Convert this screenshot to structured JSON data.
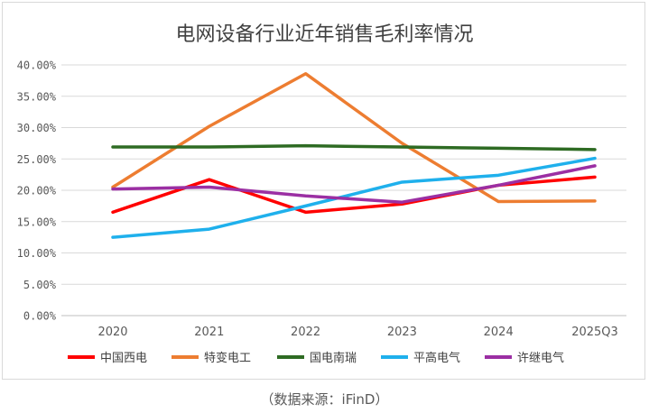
{
  "chart_data": {
    "type": "line",
    "title": "电网设备行业近年销售毛利率情况",
    "categories": [
      "2020",
      "2021",
      "2022",
      "2023",
      "2024",
      "2025Q3"
    ],
    "y_tick_labels": [
      "0.00%",
      "5.00%",
      "10.00%",
      "15.00%",
      "20.00%",
      "25.00%",
      "30.00%",
      "35.00%",
      "40.00%"
    ],
    "ylim": [
      0,
      40
    ],
    "y_unit": "%",
    "grid": true,
    "legend_position": "bottom",
    "series": [
      {
        "name": "中国西电",
        "color": "#ff0000",
        "values": [
          16.5,
          21.7,
          16.5,
          17.8,
          20.8,
          22.1
        ]
      },
      {
        "name": "特变电工",
        "color": "#ed7d31",
        "values": [
          20.5,
          30.2,
          38.6,
          27.5,
          18.2,
          18.3
        ]
      },
      {
        "name": "国电南瑞",
        "color": "#2e6b23",
        "values": [
          26.9,
          26.9,
          27.1,
          26.9,
          26.7,
          26.5
        ]
      },
      {
        "name": "平高电气",
        "color": "#1fb0ec",
        "values": [
          12.5,
          13.8,
          17.5,
          21.3,
          22.4,
          25.1
        ]
      },
      {
        "name": "许继电气",
        "color": "#9b2fa3",
        "values": [
          20.2,
          20.5,
          19.1,
          18.1,
          20.8,
          23.9
        ]
      }
    ]
  },
  "source_note": "（数据来源：iFinD）"
}
